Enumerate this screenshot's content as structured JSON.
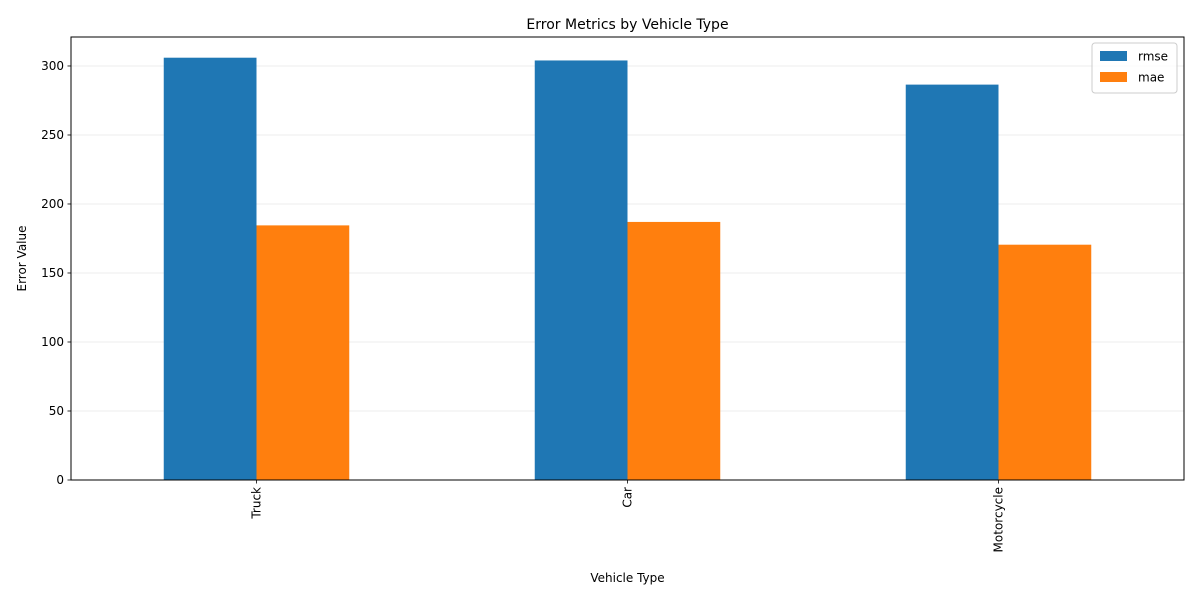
{
  "chart_data": {
    "type": "bar",
    "title": "Error Metrics by Vehicle Type",
    "xlabel": "Vehicle Type",
    "ylabel": "Error Value",
    "categories": [
      "Truck",
      "Car",
      "Motorcycle"
    ],
    "series": [
      {
        "name": "rmse",
        "color": "#1f77b4",
        "values": [
          306,
          304,
          286.5
        ]
      },
      {
        "name": "mae",
        "color": "#ff7f0e",
        "values": [
          184.5,
          187,
          170.5
        ]
      }
    ],
    "ylim": [
      0,
      321
    ],
    "yticks": [
      0,
      50,
      100,
      150,
      200,
      250,
      300
    ],
    "grid": "y",
    "legend_position": "top-right",
    "xtick_rotation": 90
  }
}
